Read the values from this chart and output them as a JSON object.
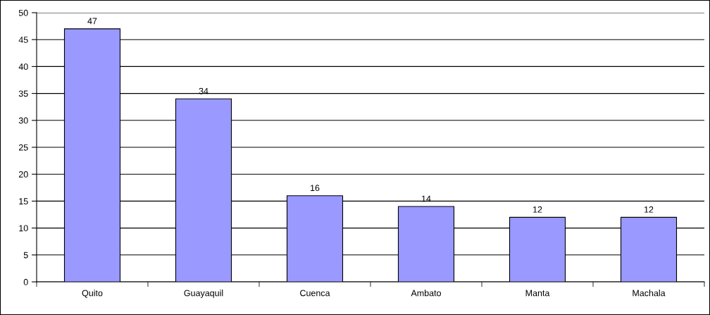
{
  "chart_data": {
    "type": "bar",
    "categories": [
      "Quito",
      "Guayaquil",
      "Cuenca",
      "Ambato",
      "Manta",
      "Machala"
    ],
    "values": [
      47,
      34,
      16,
      14,
      12,
      12
    ],
    "color": "#9999ff",
    "ylim": [
      0,
      50
    ],
    "yticks": [
      0,
      5,
      10,
      15,
      20,
      25,
      30,
      35,
      40,
      45,
      50
    ],
    "grid": "y",
    "data_labels": true,
    "legend": false
  }
}
